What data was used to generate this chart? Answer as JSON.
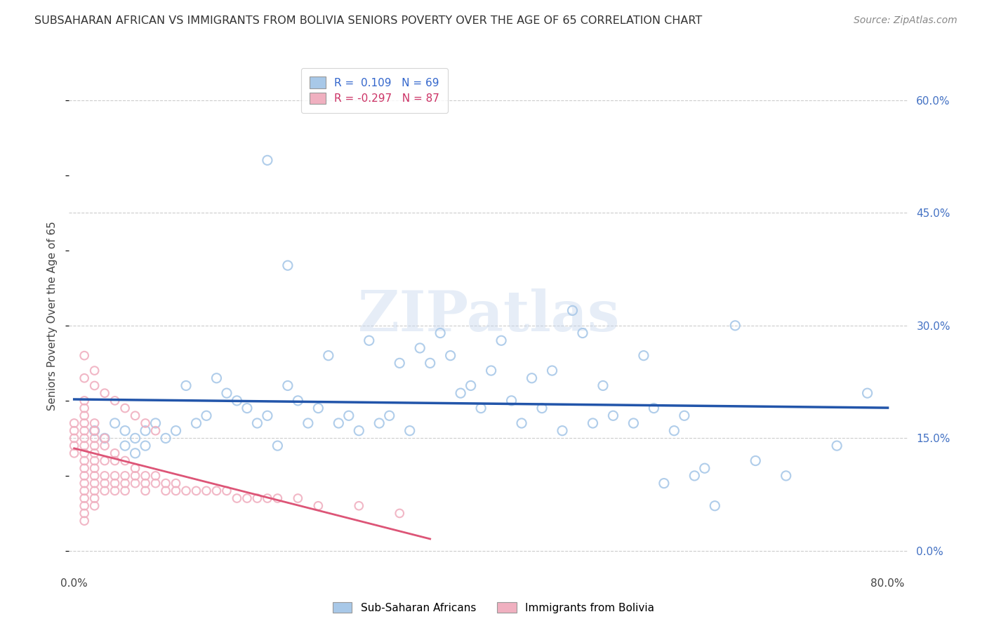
{
  "title": "SUBSAHARAN AFRICAN VS IMMIGRANTS FROM BOLIVIA SENIORS POVERTY OVER THE AGE OF 65 CORRELATION CHART",
  "source": "Source: ZipAtlas.com",
  "ylabel": "Seniors Poverty Over the Age of 65",
  "xlim": [
    -0.005,
    0.82
  ],
  "ylim": [
    -0.025,
    0.65
  ],
  "xticks": [
    0.0,
    0.1,
    0.2,
    0.3,
    0.4,
    0.5,
    0.6,
    0.7,
    0.8
  ],
  "xticklabels": [
    "0.0%",
    "",
    "",
    "",
    "",
    "",
    "",
    "",
    "80.0%"
  ],
  "yticks_grid": [
    0.0,
    0.15,
    0.3,
    0.45,
    0.6
  ],
  "ytick_labels_right": [
    "0.0%",
    "15.0%",
    "30.0%",
    "45.0%",
    "60.0%"
  ],
  "grid_color": "#cccccc",
  "background_color": "#ffffff",
  "blue_color": "#a8c8e8",
  "pink_color": "#f0b0c0",
  "blue_line_color": "#2255aa",
  "pink_line_color": "#dd5577",
  "pink_line_dashed_color": "#cccccc",
  "R_blue": 0.109,
  "N_blue": 69,
  "R_pink": -0.297,
  "N_pink": 87,
  "watermark": "ZIPatlas",
  "blue_scatter_x": [
    0.02,
    0.03,
    0.04,
    0.05,
    0.05,
    0.06,
    0.06,
    0.07,
    0.07,
    0.08,
    0.09,
    0.1,
    0.11,
    0.12,
    0.13,
    0.14,
    0.15,
    0.16,
    0.17,
    0.18,
    0.19,
    0.2,
    0.21,
    0.22,
    0.23,
    0.24,
    0.25,
    0.26,
    0.27,
    0.28,
    0.29,
    0.3,
    0.31,
    0.32,
    0.33,
    0.34,
    0.35,
    0.36,
    0.37,
    0.38,
    0.39,
    0.4,
    0.41,
    0.42,
    0.43,
    0.44,
    0.45,
    0.46,
    0.47,
    0.48,
    0.49,
    0.5,
    0.51,
    0.52,
    0.53,
    0.55,
    0.56,
    0.57,
    0.58,
    0.59,
    0.6,
    0.61,
    0.62,
    0.63,
    0.65,
    0.67,
    0.7,
    0.75,
    0.78
  ],
  "blue_scatter_y": [
    0.16,
    0.15,
    0.17,
    0.14,
    0.16,
    0.15,
    0.13,
    0.14,
    0.16,
    0.17,
    0.15,
    0.16,
    0.22,
    0.17,
    0.18,
    0.23,
    0.21,
    0.2,
    0.19,
    0.17,
    0.18,
    0.14,
    0.22,
    0.2,
    0.17,
    0.19,
    0.26,
    0.17,
    0.18,
    0.16,
    0.28,
    0.17,
    0.18,
    0.25,
    0.16,
    0.27,
    0.25,
    0.29,
    0.26,
    0.21,
    0.22,
    0.19,
    0.24,
    0.28,
    0.2,
    0.17,
    0.23,
    0.19,
    0.24,
    0.16,
    0.32,
    0.29,
    0.17,
    0.22,
    0.18,
    0.17,
    0.26,
    0.19,
    0.09,
    0.16,
    0.18,
    0.1,
    0.11,
    0.06,
    0.3,
    0.12,
    0.1,
    0.14,
    0.21
  ],
  "blue_outlier_x": [
    0.19
  ],
  "blue_outlier_y": [
    0.52
  ],
  "blue_high_x": [
    0.21
  ],
  "blue_high_y": [
    0.38
  ],
  "pink_scatter_x": [
    0.0,
    0.0,
    0.0,
    0.0,
    0.0,
    0.01,
    0.01,
    0.01,
    0.01,
    0.01,
    0.01,
    0.01,
    0.01,
    0.01,
    0.01,
    0.01,
    0.01,
    0.01,
    0.01,
    0.01,
    0.01,
    0.01,
    0.02,
    0.02,
    0.02,
    0.02,
    0.02,
    0.02,
    0.02,
    0.02,
    0.02,
    0.02,
    0.02,
    0.02,
    0.03,
    0.03,
    0.03,
    0.03,
    0.03,
    0.03,
    0.04,
    0.04,
    0.04,
    0.04,
    0.04,
    0.05,
    0.05,
    0.05,
    0.05,
    0.06,
    0.06,
    0.06,
    0.07,
    0.07,
    0.07,
    0.08,
    0.08,
    0.09,
    0.09,
    0.1,
    0.1,
    0.11,
    0.12,
    0.13,
    0.14,
    0.15,
    0.16,
    0.17,
    0.18,
    0.19,
    0.2,
    0.22,
    0.24,
    0.28,
    0.32,
    0.02,
    0.02,
    0.03,
    0.04,
    0.05,
    0.06,
    0.07,
    0.08,
    0.01,
    0.01
  ],
  "pink_scatter_y": [
    0.14,
    0.13,
    0.16,
    0.15,
    0.17,
    0.16,
    0.15,
    0.14,
    0.13,
    0.12,
    0.11,
    0.1,
    0.09,
    0.08,
    0.07,
    0.17,
    0.18,
    0.19,
    0.2,
    0.06,
    0.05,
    0.04,
    0.15,
    0.14,
    0.13,
    0.12,
    0.11,
    0.1,
    0.09,
    0.08,
    0.07,
    0.06,
    0.17,
    0.16,
    0.15,
    0.14,
    0.12,
    0.1,
    0.09,
    0.08,
    0.13,
    0.12,
    0.1,
    0.09,
    0.08,
    0.12,
    0.1,
    0.09,
    0.08,
    0.11,
    0.1,
    0.09,
    0.1,
    0.09,
    0.08,
    0.1,
    0.09,
    0.09,
    0.08,
    0.09,
    0.08,
    0.08,
    0.08,
    0.08,
    0.08,
    0.08,
    0.07,
    0.07,
    0.07,
    0.07,
    0.07,
    0.07,
    0.06,
    0.06,
    0.05,
    0.24,
    0.22,
    0.21,
    0.2,
    0.19,
    0.18,
    0.17,
    0.16,
    0.26,
    0.23
  ]
}
